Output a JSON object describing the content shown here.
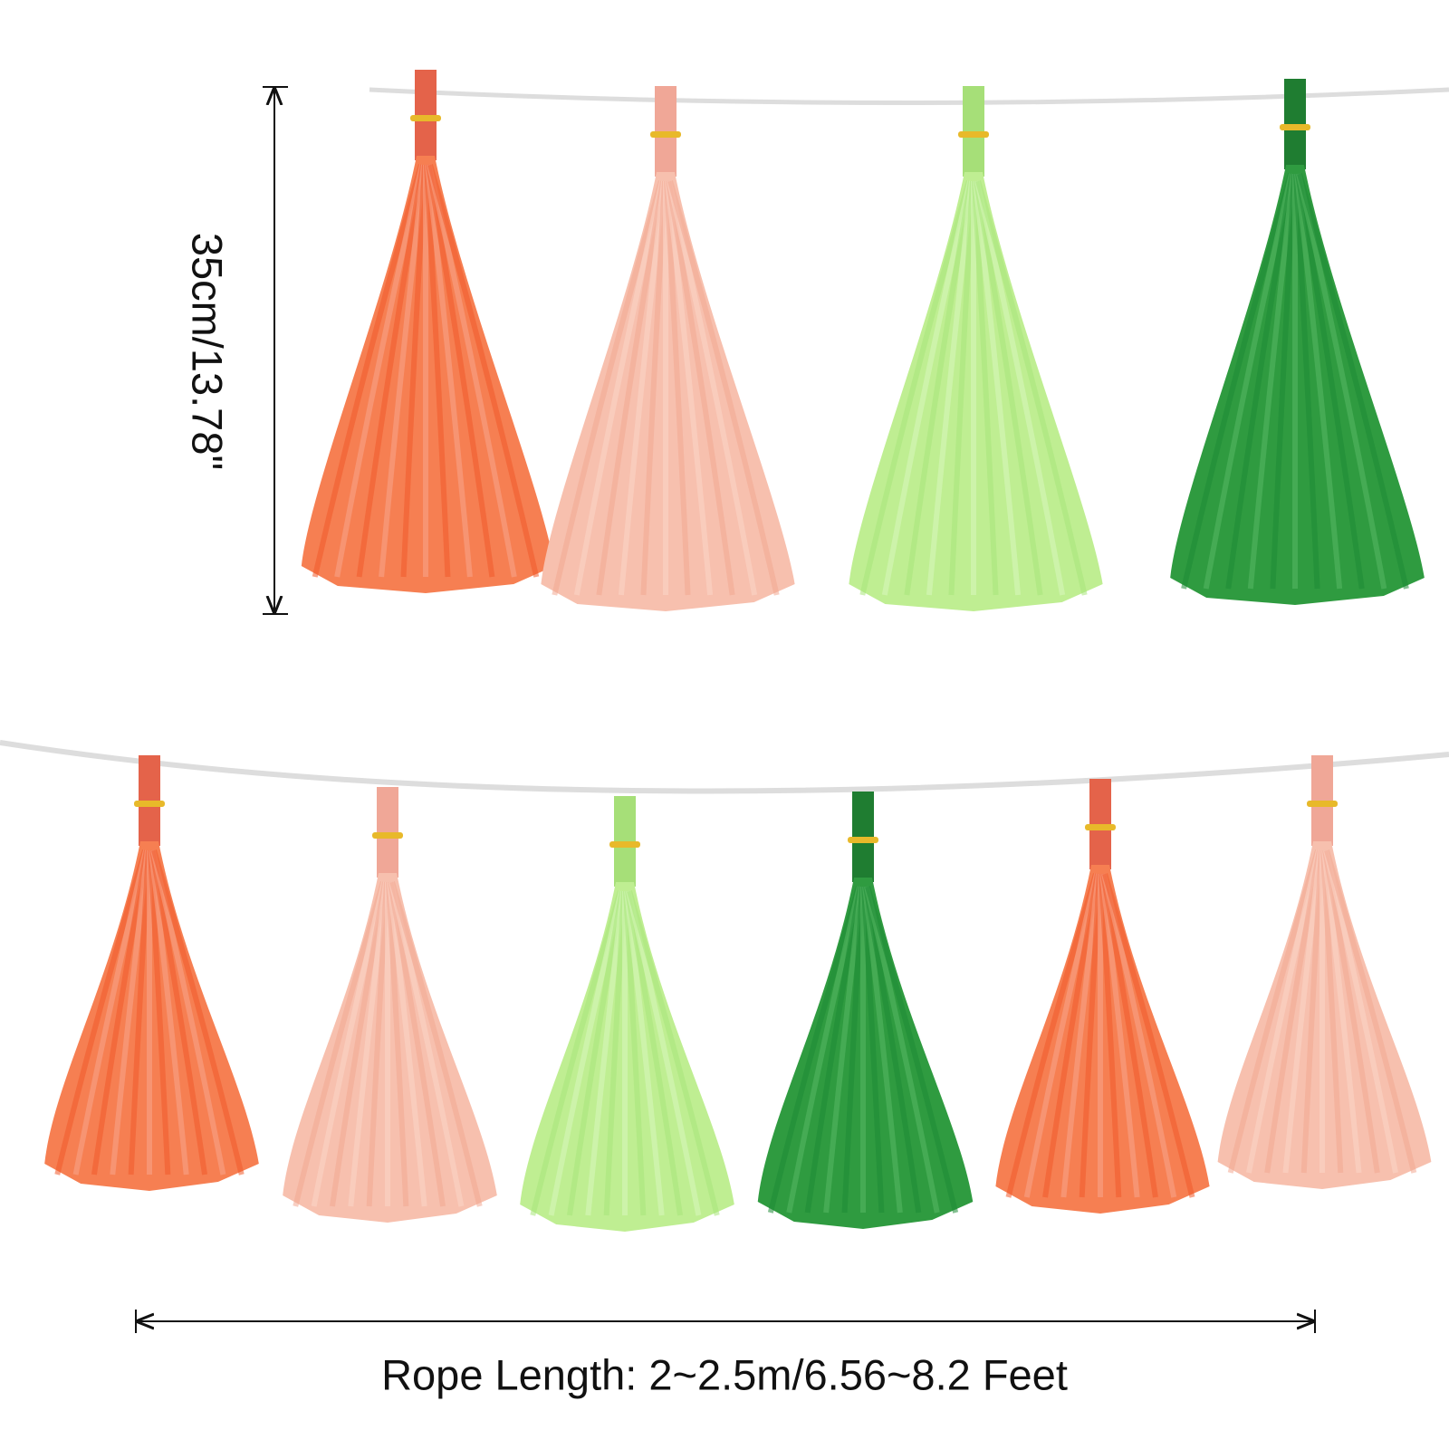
{
  "dimensions": {
    "height_label": "35cm/13.78\"",
    "length_label": "Rope Length: 2~2.5m/6.56~8.2 Feet"
  }
}
